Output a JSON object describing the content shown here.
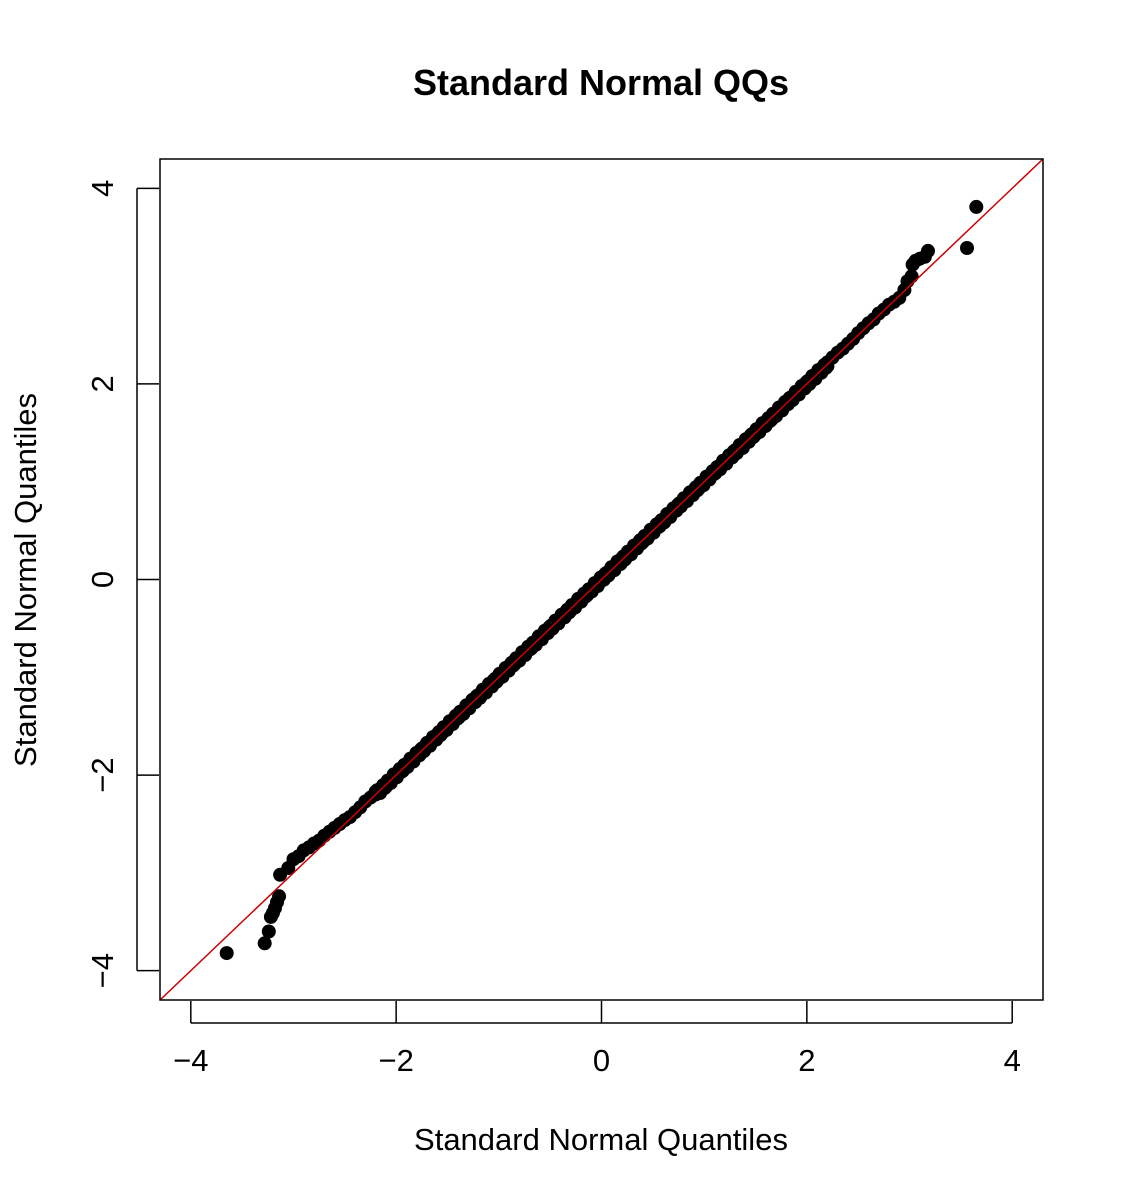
{
  "chart_data": {
    "type": "scatter",
    "title": "Standard Normal QQs",
    "xlabel": "Standard Normal Quantiles",
    "ylabel": "Standard Normal Quantiles",
    "xlim": [
      -4.3,
      4.3
    ],
    "ylim": [
      -4.3,
      4.3
    ],
    "x_ticks": [
      -4,
      -2,
      0,
      2,
      4
    ],
    "x_tick_labels": [
      "−4",
      "−2",
      "0",
      "2",
      "4"
    ],
    "y_ticks": [
      -4,
      -2,
      0,
      2,
      4
    ],
    "y_tick_labels": [
      "−4",
      "−2",
      "0",
      "2",
      "4"
    ],
    "grid": false,
    "legend": "none",
    "reference_line": {
      "slope": 1,
      "intercept": 0,
      "color": "#cc0000"
    },
    "point_color": "#000000",
    "series": [
      {
        "points": [
          [
            -3.65,
            -3.82
          ],
          [
            -3.28,
            -3.72
          ],
          [
            -3.24,
            -3.6
          ],
          [
            -3.22,
            -3.45
          ],
          [
            -3.2,
            -3.41
          ],
          [
            -3.18,
            -3.36
          ],
          [
            -3.16,
            -3.3
          ],
          [
            -3.14,
            -3.24
          ],
          [
            -3.13,
            -3.02
          ],
          [
            -3.05,
            -2.95
          ],
          [
            -3.0,
            -2.86
          ],
          [
            -2.95,
            -2.83
          ],
          [
            -2.9,
            -2.77
          ],
          [
            -2.85,
            -2.74
          ],
          [
            -2.8,
            -2.7
          ],
          [
            -2.75,
            -2.67
          ],
          [
            -2.7,
            -2.62
          ],
          [
            -2.65,
            -2.58
          ],
          [
            -2.6,
            -2.54
          ],
          [
            -2.55,
            -2.5
          ],
          [
            -2.5,
            -2.46
          ],
          [
            -2.45,
            -2.43
          ],
          [
            -2.4,
            -2.38
          ],
          [
            -2.35,
            -2.33
          ],
          [
            -2.3,
            -2.27
          ],
          [
            -2.25,
            -2.23
          ],
          [
            -2.2,
            -2.17
          ],
          [
            2.2,
            2.22
          ],
          [
            2.25,
            2.27
          ],
          [
            2.3,
            2.32
          ],
          [
            2.35,
            2.36
          ],
          [
            2.4,
            2.41
          ],
          [
            2.45,
            2.46
          ],
          [
            2.5,
            2.52
          ],
          [
            2.55,
            2.57
          ],
          [
            2.6,
            2.62
          ],
          [
            2.65,
            2.66
          ],
          [
            2.7,
            2.72
          ],
          [
            2.75,
            2.76
          ],
          [
            2.8,
            2.81
          ],
          [
            2.85,
            2.84
          ],
          [
            2.9,
            2.88
          ],
          [
            2.95,
            2.96
          ],
          [
            2.98,
            3.05
          ],
          [
            3.02,
            3.1
          ],
          [
            3.03,
            3.22
          ],
          [
            3.06,
            3.26
          ],
          [
            3.1,
            3.28
          ],
          [
            3.15,
            3.3
          ],
          [
            3.18,
            3.36
          ],
          [
            3.56,
            3.39
          ],
          [
            3.65,
            3.81
          ]
        ],
        "dense_band": {
          "x_from": -2.2,
          "x_to": 2.2,
          "count": 300
        }
      }
    ]
  }
}
